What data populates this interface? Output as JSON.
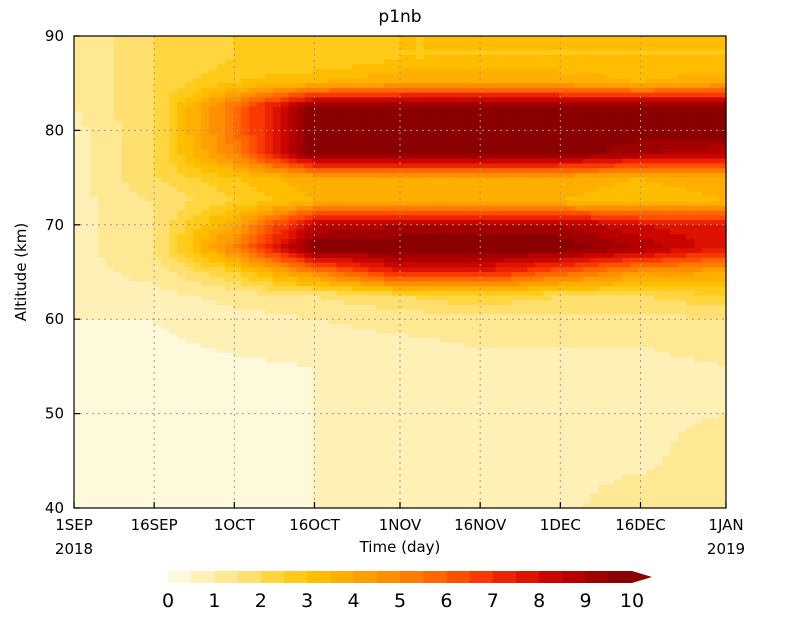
{
  "chart_data": {
    "type": "heatmap",
    "title": "p1nb",
    "xlabel": "Time (day)",
    "ylabel": "Altitude (km)",
    "x_unit": "day",
    "y_unit": "km",
    "xlim": [
      "2018-09-01",
      "2019-01-01"
    ],
    "ylim": [
      40,
      90
    ],
    "x_ticks": [
      {
        "date": "2018-09-01",
        "label": "1SEP",
        "sublabel": "2018"
      },
      {
        "date": "2018-09-16",
        "label": "16SEP",
        "sublabel": ""
      },
      {
        "date": "2018-10-01",
        "label": "1OCT",
        "sublabel": ""
      },
      {
        "date": "2018-10-16",
        "label": "16OCT",
        "sublabel": ""
      },
      {
        "date": "2018-11-01",
        "label": "1NOV",
        "sublabel": ""
      },
      {
        "date": "2018-11-16",
        "label": "16NOV",
        "sublabel": ""
      },
      {
        "date": "2018-12-01",
        "label": "1DEC",
        "sublabel": ""
      },
      {
        "date": "2018-12-16",
        "label": "16DEC",
        "sublabel": ""
      },
      {
        "date": "2019-01-01",
        "label": "1JAN",
        "sublabel": "2019"
      }
    ],
    "y_ticks": [
      "40",
      "50",
      "60",
      "70",
      "80",
      "90"
    ],
    "y_tick_values": [
      40,
      50,
      60,
      70,
      80,
      90
    ],
    "grid": true,
    "colorbar": {
      "position": "bottom",
      "labels": [
        "0",
        "1",
        "2",
        "3",
        "4",
        "5",
        "6",
        "7",
        "8",
        "9",
        "10"
      ],
      "levels": [
        0,
        0.5,
        1,
        1.5,
        2,
        2.5,
        3,
        3.5,
        4,
        4.5,
        5,
        5.5,
        6,
        6.5,
        7,
        7.5,
        8,
        8.5,
        9,
        9.5,
        10
      ],
      "colors": [
        "#fff9dc",
        "#fff0b8",
        "#ffe894",
        "#ffdf70",
        "#ffd63f",
        "#ffca19",
        "#ffbd00",
        "#ffaf00",
        "#ffa000",
        "#ff8f00",
        "#ff7c00",
        "#ff6700",
        "#ff5000",
        "#fa3900",
        "#ec2300",
        "#dd1200",
        "#ca0500",
        "#b50000",
        "#a00000",
        "#8b0000"
      ],
      "extend": "max"
    },
    "z_samples": {
      "x": [
        "2018-09-01",
        "2018-09-16",
        "2018-10-01",
        "2018-10-16",
        "2018-11-01",
        "2018-11-16",
        "2018-12-01",
        "2018-12-16",
        "2019-01-01"
      ],
      "y": [
        40,
        45,
        50,
        55,
        60,
        62.5,
        65,
        67.5,
        70,
        72.5,
        75,
        77.5,
        80,
        82.5,
        85,
        87.5,
        90
      ],
      "z": [
        [
          0.2,
          0.4,
          0.4,
          0.5,
          0.5,
          0.8,
          0.8,
          1.5,
          1.5
        ],
        [
          0.2,
          0.4,
          0.4,
          0.5,
          0.5,
          0.8,
          0.8,
          0.8,
          1.5
        ],
        [
          0.2,
          0.4,
          0.4,
          0.5,
          0.6,
          0.8,
          0.8,
          0.8,
          1.0
        ],
        [
          0.2,
          0.3,
          0.4,
          0.5,
          0.6,
          0.8,
          0.8,
          0.8,
          1.0
        ],
        [
          0.5,
          0.5,
          0.8,
          1.0,
          1.2,
          1.3,
          1.3,
          1.3,
          1.5
        ],
        [
          0.8,
          0.8,
          1.2,
          1.5,
          2.0,
          2.5,
          2.0,
          2.0,
          2.5
        ],
        [
          0.8,
          1.2,
          2.5,
          5.0,
          7.5,
          7.5,
          6.0,
          4.5,
          4.0
        ],
        [
          0.8,
          1.5,
          5.0,
          10.0,
          10.0,
          10.0,
          10.0,
          9.0,
          7.5
        ],
        [
          0.8,
          1.5,
          4.0,
          8.5,
          9.0,
          9.0,
          9.0,
          8.0,
          7.5
        ],
        [
          0.8,
          1.5,
          2.5,
          3.5,
          3.5,
          3.5,
          3.5,
          3.0,
          3.5
        ],
        [
          0.8,
          2.0,
          3.0,
          4.0,
          4.0,
          4.0,
          4.0,
          3.5,
          4.0
        ],
        [
          0.8,
          2.0,
          5.0,
          10.0,
          10.0,
          10.0,
          10.0,
          9.0,
          8.5
        ],
        [
          0.8,
          2.0,
          5.5,
          10.0,
          10.0,
          10.0,
          10.0,
          10.0,
          10.0
        ],
        [
          1.0,
          2.0,
          5.5,
          10.0,
          10.0,
          10.0,
          10.0,
          10.0,
          10.0
        ],
        [
          1.0,
          2.0,
          3.0,
          3.5,
          4.0,
          4.0,
          4.0,
          3.5,
          4.0
        ],
        [
          1.0,
          2.0,
          2.5,
          2.5,
          3.0,
          3.0,
          3.0,
          3.0,
          3.0
        ],
        [
          1.0,
          2.0,
          2.5,
          2.5,
          3.0,
          3.0,
          3.0,
          3.0,
          3.0
        ]
      ]
    }
  }
}
